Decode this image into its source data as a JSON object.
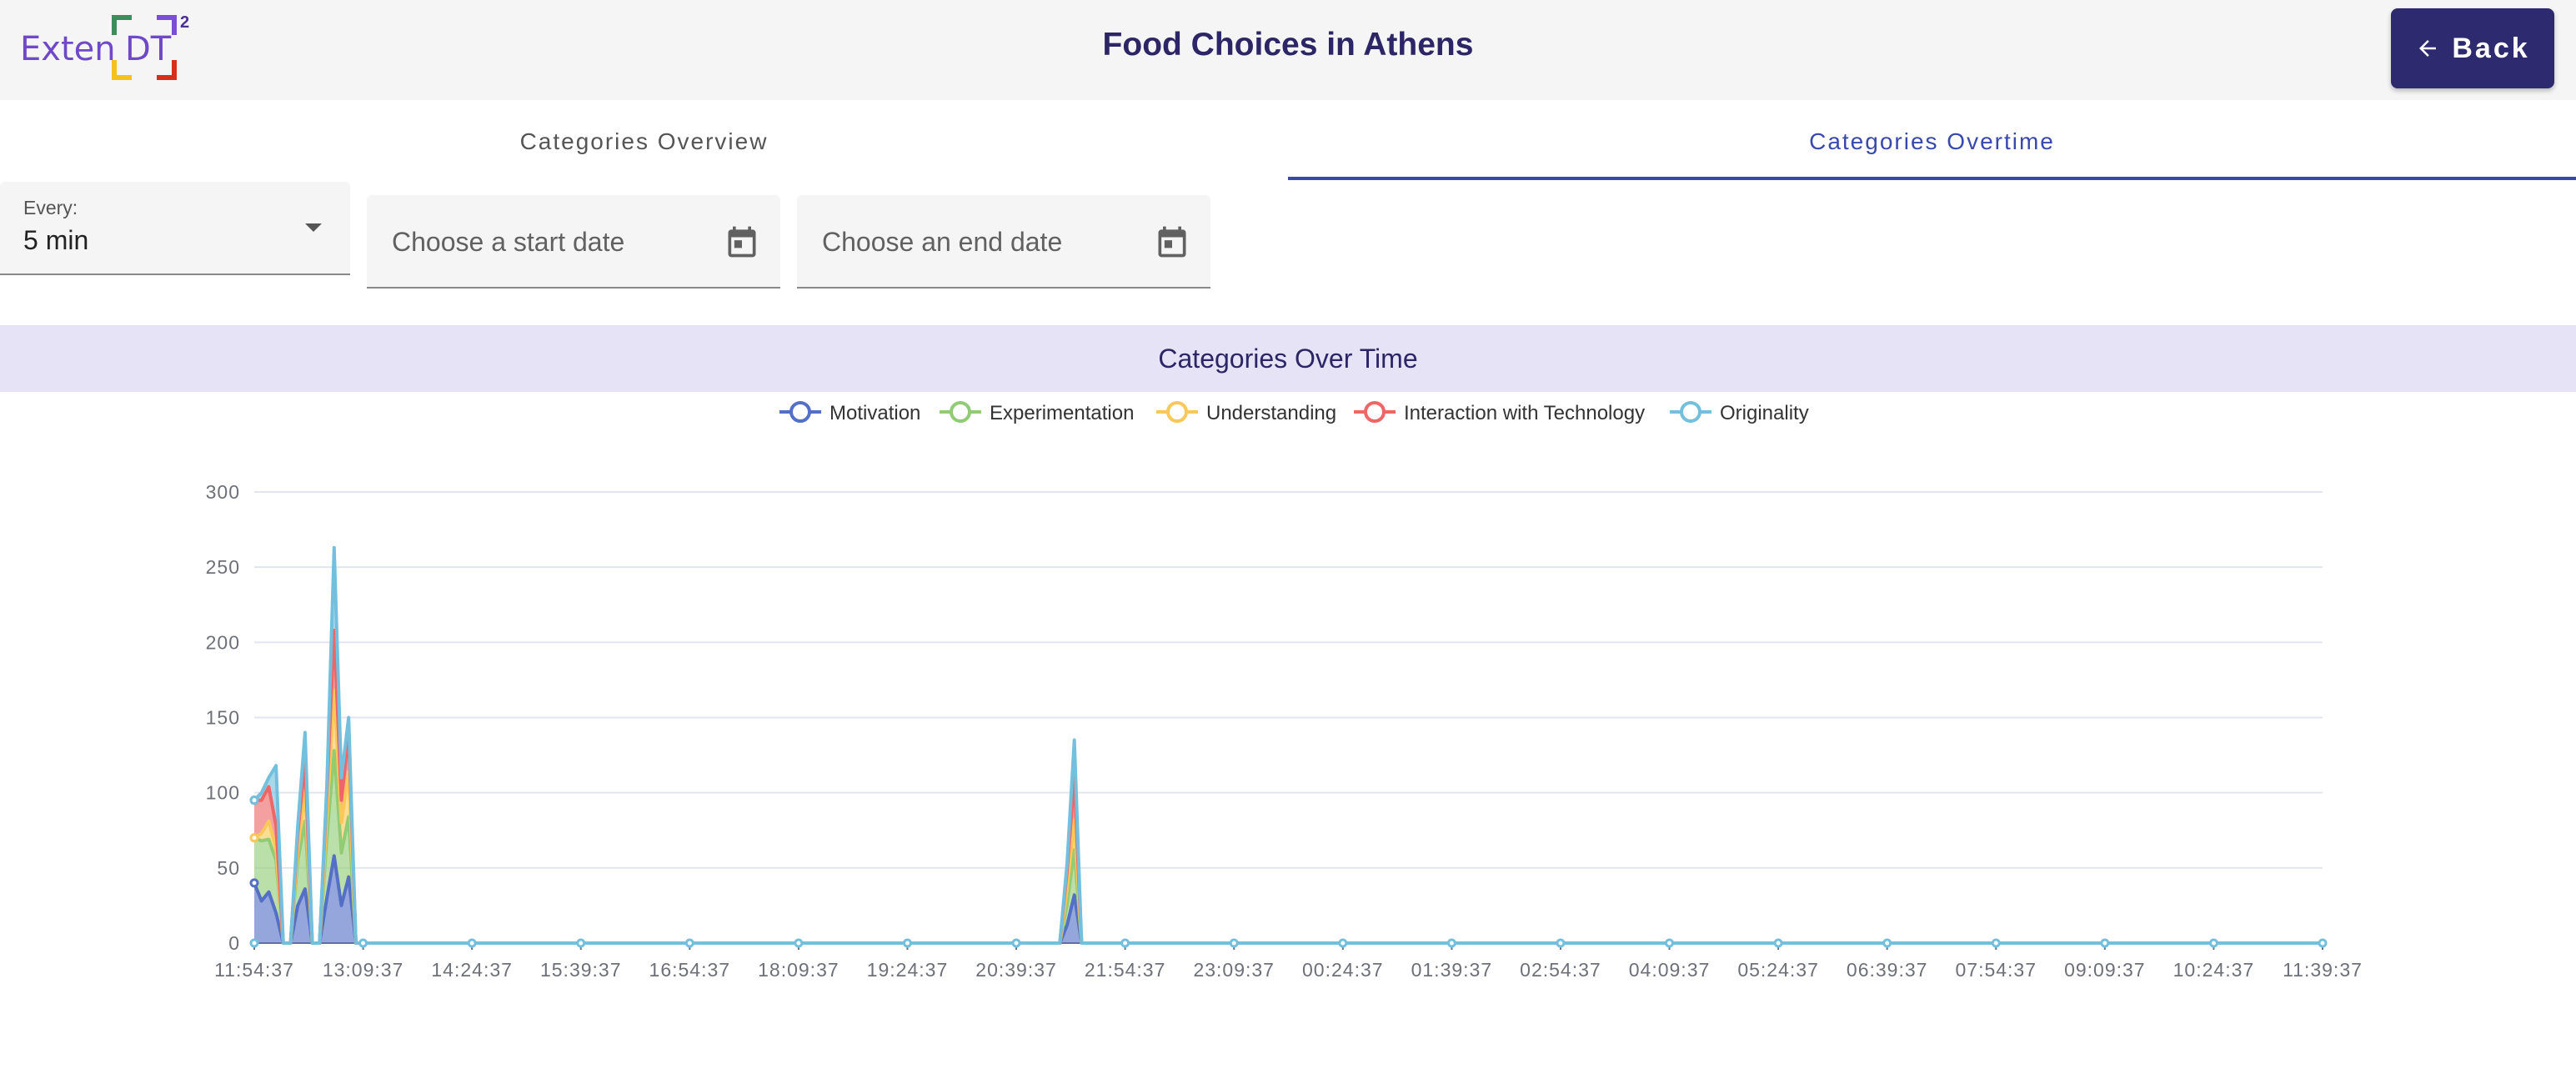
{
  "header": {
    "logo_text": "Exten",
    "logo_dt": "DT",
    "logo_sup": "2",
    "title": "Food Choices in Athens",
    "back_label": "Back",
    "back_icon": "arrow-left-icon"
  },
  "tabs": [
    {
      "label": "Categories Overview",
      "active": false
    },
    {
      "label": "Categories Overtime",
      "active": true
    }
  ],
  "filters": {
    "interval_label": "Every:",
    "interval_value": "5 min",
    "start_date_placeholder": "Choose a start date",
    "end_date_placeholder": "Choose an end date",
    "calendar_icon": "calendar-icon"
  },
  "colors": {
    "brand": "#2e2a70",
    "tab_active": "#3949ab",
    "chart_header_bg": "#e5e3f5"
  },
  "chart_data": {
    "type": "area",
    "stacked": true,
    "title": "Categories Over Time",
    "legend_position": "top-center",
    "grid": true,
    "ylim": [
      0,
      300
    ],
    "y_ticks": [
      0,
      50,
      100,
      150,
      200,
      250,
      300
    ],
    "x_tick_labels": [
      "11:54:37",
      "13:09:37",
      "14:24:37",
      "15:39:37",
      "16:54:37",
      "18:09:37",
      "19:24:37",
      "20:39:37",
      "21:54:37",
      "23:09:37",
      "00:24:37",
      "01:39:37",
      "02:54:37",
      "04:09:37",
      "05:24:37",
      "06:39:37",
      "07:54:37",
      "09:09:37",
      "10:24:37",
      "11:39:37"
    ],
    "x": [
      "11:54:37",
      "11:59:37",
      "12:04:37",
      "12:09:37",
      "12:14:37",
      "12:19:37",
      "12:24:37",
      "12:29:37",
      "12:34:37",
      "12:39:37",
      "12:44:37",
      "12:49:37",
      "12:54:37",
      "12:59:37",
      "13:04:37",
      "13:09:37",
      "20:59:37",
      "21:04:37",
      "21:09:37",
      "21:14:37",
      "21:19:37",
      "21:24:37",
      "21:29:37",
      "11:39:37"
    ],
    "series": [
      {
        "name": "Motivation",
        "color": "#5470c6",
        "values": [
          40,
          28,
          34,
          20,
          0,
          0,
          25,
          36,
          0,
          0,
          30,
          58,
          25,
          44,
          0,
          0,
          0,
          0,
          0,
          12,
          32,
          0,
          0,
          0
        ]
      },
      {
        "name": "Experimentation",
        "color": "#91cc75",
        "values": [
          30,
          40,
          35,
          35,
          0,
          0,
          30,
          45,
          0,
          0,
          40,
          70,
          35,
          40,
          0,
          0,
          0,
          0,
          0,
          14,
          30,
          0,
          0,
          0
        ]
      },
      {
        "name": "Understanding",
        "color": "#fac858",
        "values": [
          0,
          5,
          12,
          8,
          0,
          0,
          8,
          20,
          0,
          0,
          15,
          40,
          20,
          30,
          0,
          0,
          0,
          0,
          0,
          10,
          20,
          0,
          0,
          0
        ]
      },
      {
        "name": "Interaction with Technology",
        "color": "#ee6666",
        "values": [
          25,
          22,
          23,
          15,
          0,
          0,
          10,
          20,
          0,
          0,
          15,
          40,
          15,
          25,
          0,
          0,
          0,
          0,
          0,
          12,
          28,
          0,
          0,
          0
        ]
      },
      {
        "name": "Originality",
        "color": "#73c0de",
        "values": [
          0,
          5,
          6,
          40,
          0,
          0,
          5,
          19,
          0,
          0,
          5,
          55,
          15,
          11,
          0,
          0,
          0,
          0,
          0,
          5,
          25,
          0,
          0,
          0
        ]
      }
    ]
  }
}
